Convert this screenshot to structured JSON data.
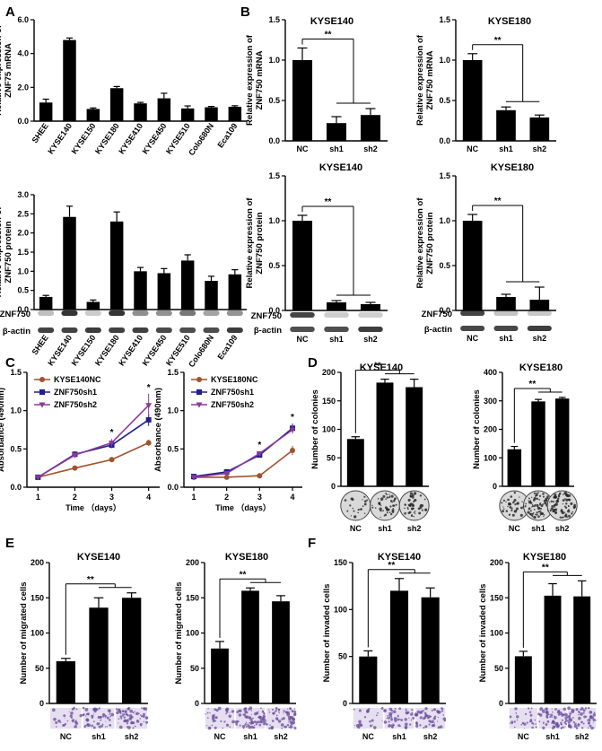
{
  "chart_data": [
    {
      "id": "A1",
      "type": "bar",
      "panel_label": "A",
      "title": "",
      "ylabel": [
        "Relative expression of",
        "ZNF75 mRNA"
      ],
      "categories": [
        "SHEE",
        "KYSE140",
        "KYSE150",
        "KYSE180",
        "KYSE410",
        "KYSE450",
        "KYSE510",
        "Colo680N",
        "Eca109"
      ],
      "values": [
        1.1,
        4.8,
        0.72,
        1.95,
        1.05,
        1.35,
        0.75,
        0.82,
        0.85
      ],
      "errors": [
        0.2,
        0.12,
        0.06,
        0.1,
        0.06,
        0.3,
        0.15,
        0.05,
        0.06
      ],
      "ylim": [
        0,
        6
      ],
      "yticks": [
        0,
        2,
        4,
        6
      ],
      "ytick_labels": [
        "0.0",
        "2.0",
        "4.0",
        "6.0"
      ],
      "xlabel_rotate": true
    },
    {
      "id": "A2",
      "type": "bar",
      "title": "",
      "ylabel": [
        "Relative expression of",
        "ZNF750 protein"
      ],
      "categories": [
        "SHEE",
        "KYSE140",
        "KYSE150",
        "KYSE180",
        "KYSE410",
        "KYSE450",
        "KYSE510",
        "Colo680N",
        "Eca109"
      ],
      "values": [
        0.33,
        2.42,
        0.2,
        2.3,
        1.0,
        0.95,
        1.28,
        0.75,
        0.92
      ],
      "errors": [
        0.04,
        0.28,
        0.05,
        0.25,
        0.1,
        0.12,
        0.15,
        0.12,
        0.12
      ],
      "ylim": [
        0,
        3
      ],
      "yticks": [
        0,
        0.5,
        1,
        1.5,
        2,
        2.5,
        3
      ],
      "ytick_labels": [
        "0.0",
        "0.5",
        "1.0",
        "1.5",
        "2.0",
        "2.5",
        "3.0"
      ],
      "blot_labels": [
        "ZNF750",
        "β-actin"
      ],
      "xlabel_rotate": true
    },
    {
      "id": "B1",
      "type": "bar",
      "panel_label": "B",
      "title": "KYSE140",
      "ylabel": [
        "Relative expression of",
        "ZNF750 mRNA"
      ],
      "categories": [
        "NC",
        "sh1",
        "sh2"
      ],
      "values": [
        1.0,
        0.22,
        0.32
      ],
      "errors": [
        0.15,
        0.08,
        0.08
      ],
      "ylim": [
        0,
        1.5
      ],
      "yticks": [
        0,
        0.5,
        1,
        1.5
      ],
      "ytick_labels": [
        "0.0",
        "0.5",
        "1.0",
        "1.5"
      ],
      "significance": "**"
    },
    {
      "id": "B2",
      "type": "bar",
      "title": "KYSE180",
      "ylabel": [
        "Relative expression of",
        "ZNF750 mRNA"
      ],
      "categories": [
        "NC",
        "sh1",
        "sh2"
      ],
      "values": [
        1.0,
        0.38,
        0.29
      ],
      "errors": [
        0.08,
        0.04,
        0.03
      ],
      "ylim": [
        0,
        1.5
      ],
      "yticks": [
        0,
        0.5,
        1,
        1.5
      ],
      "ytick_labels": [
        "0.0",
        "0.5",
        "1.0",
        "1.5"
      ],
      "significance": "**"
    },
    {
      "id": "B3",
      "type": "bar",
      "title": "KYSE140",
      "ylabel": [
        "Relative expression of",
        "ZNF750 protein"
      ],
      "categories": [
        "NC",
        "sh1",
        "sh2"
      ],
      "values": [
        1.0,
        0.09,
        0.07
      ],
      "errors": [
        0.06,
        0.02,
        0.02
      ],
      "ylim": [
        0,
        1.5
      ],
      "yticks": [
        0,
        0.5,
        1,
        1.5
      ],
      "ytick_labels": [
        "0.0",
        "0.5",
        "1.0",
        "1.5"
      ],
      "significance": "**",
      "blot_labels": [
        "ZNF750",
        "β-actin"
      ]
    },
    {
      "id": "B4",
      "type": "bar",
      "title": "KYSE180",
      "ylabel": [
        "Relative expression of",
        "ZNF750 protein"
      ],
      "categories": [
        "NC",
        "sh1",
        "sh2"
      ],
      "values": [
        1.0,
        0.15,
        0.12
      ],
      "errors": [
        0.07,
        0.03,
        0.14
      ],
      "ylim": [
        0,
        1.5
      ],
      "yticks": [
        0,
        0.5,
        1,
        1.5
      ],
      "ytick_labels": [
        "0.0",
        "0.5",
        "1.0",
        "1.5"
      ],
      "significance": "**",
      "blot_labels": [
        "ZNF750",
        "β-actin"
      ]
    },
    {
      "id": "C1",
      "type": "line",
      "panel_label": "C",
      "title": "",
      "xlabel": "Time （days）",
      "ylabel": [
        "Absorbance (490nm)"
      ],
      "x": [
        1,
        2,
        3,
        4
      ],
      "ylim": [
        0,
        1.5
      ],
      "yticks": [
        0,
        0.5,
        1,
        1.5
      ],
      "ytick_labels": [
        "0.0",
        "0.5",
        "1.0",
        "1.5"
      ],
      "series": [
        {
          "name": "KYSE140NC",
          "color": "#A0522D",
          "marker": "circle",
          "values": [
            0.13,
            0.25,
            0.36,
            0.58
          ],
          "errors": [
            0.01,
            0.02,
            0.03,
            0.04
          ]
        },
        {
          "name": "ZNF750sh1",
          "color": "#1F1F8F",
          "marker": "square",
          "values": [
            0.13,
            0.43,
            0.55,
            0.88
          ],
          "errors": [
            0.01,
            0.04,
            0.04,
            0.08
          ]
        },
        {
          "name": "ZNF750sh2",
          "color": "#8B3A9B",
          "marker": "triangle",
          "values": [
            0.13,
            0.42,
            0.58,
            1.07
          ],
          "errors": [
            0.01,
            0.03,
            0.05,
            0.15
          ]
        }
      ],
      "annotations": [
        {
          "x": 3,
          "text": "*"
        },
        {
          "x": 4,
          "text": "*"
        }
      ]
    },
    {
      "id": "C2",
      "type": "line",
      "title": "",
      "xlabel": "Time （days）",
      "ylabel": [
        "Absorbance (490nm)"
      ],
      "x": [
        1,
        2,
        3,
        4
      ],
      "ylim": [
        0,
        1.5
      ],
      "yticks": [
        0,
        0.5,
        1,
        1.5
      ],
      "ytick_labels": [
        "0.0",
        "0.5",
        "1.0",
        "1.5"
      ],
      "series": [
        {
          "name": "KYSE180NC",
          "color": "#A0522D",
          "marker": "circle",
          "values": [
            0.13,
            0.13,
            0.15,
            0.48
          ],
          "errors": [
            0.01,
            0.01,
            0.01,
            0.06
          ]
        },
        {
          "name": "ZNF750sh1",
          "color": "#1F1F8F",
          "marker": "square",
          "values": [
            0.14,
            0.2,
            0.42,
            0.77
          ],
          "errors": [
            0.01,
            0.02,
            0.03,
            0.06
          ]
        },
        {
          "name": "ZNF750sh2",
          "color": "#8B3A9B",
          "marker": "triangle",
          "values": [
            0.13,
            0.18,
            0.44,
            0.75
          ],
          "errors": [
            0.01,
            0.02,
            0.03,
            0.05
          ]
        }
      ],
      "annotations": [
        {
          "x": 3,
          "text": "*"
        },
        {
          "x": 4,
          "text": "*"
        }
      ]
    },
    {
      "id": "D1",
      "type": "bar",
      "panel_label": "D",
      "title": "KYSE140",
      "ylabel": [
        "Number of colonies"
      ],
      "categories": [
        "NC",
        "sh1",
        "sh2"
      ],
      "values": [
        83,
        182,
        174
      ],
      "errors": [
        4,
        6,
        14
      ],
      "ylim": [
        0,
        200
      ],
      "yticks": [
        0,
        50,
        100,
        150,
        200
      ],
      "ytick_labels": [
        "0",
        "50",
        "100",
        "150",
        "200"
      ],
      "significance": "**",
      "images": "colony"
    },
    {
      "id": "D2",
      "type": "bar",
      "title": "KYSE180",
      "ylabel": [
        "Number of colonies"
      ],
      "categories": [
        "NC",
        "sh1",
        "sh2"
      ],
      "values": [
        130,
        298,
        308
      ],
      "errors": [
        10,
        7,
        4
      ],
      "ylim": [
        0,
        400
      ],
      "yticks": [
        0,
        100,
        200,
        300,
        400
      ],
      "ytick_labels": [
        "0",
        "100",
        "200",
        "300",
        "400"
      ],
      "significance": "**",
      "images": "colony"
    },
    {
      "id": "E1",
      "type": "bar",
      "panel_label": "E",
      "title": "KYSE140",
      "ylabel": [
        "Number of migrated cells"
      ],
      "categories": [
        "NC",
        "sh1",
        "sh2"
      ],
      "values": [
        60,
        136,
        150
      ],
      "errors": [
        4,
        14,
        7
      ],
      "ylim": [
        0,
        200
      ],
      "yticks": [
        0,
        50,
        100,
        150,
        200
      ],
      "ytick_labels": [
        "0",
        "50",
        "100",
        "150",
        "200"
      ],
      "significance": "**",
      "images": "transwell"
    },
    {
      "id": "E2",
      "type": "bar",
      "title": "KYSE180",
      "ylabel": [
        "Number of migrated cells"
      ],
      "categories": [
        "NC",
        "sh1",
        "sh2"
      ],
      "values": [
        78,
        160,
        145
      ],
      "errors": [
        10,
        4,
        8
      ],
      "ylim": [
        0,
        200
      ],
      "yticks": [
        0,
        50,
        100,
        150,
        200
      ],
      "ytick_labels": [
        "0",
        "50",
        "100",
        "150",
        "200"
      ],
      "significance": "**",
      "images": "transwell"
    },
    {
      "id": "F1",
      "type": "bar",
      "panel_label": "F",
      "title": "KYSE140",
      "ylabel": [
        "Number of invaded cells"
      ],
      "categories": [
        "NC",
        "sh1",
        "sh2"
      ],
      "values": [
        50,
        120,
        113
      ],
      "errors": [
        6,
        13,
        10
      ],
      "ylim": [
        0,
        150
      ],
      "yticks": [
        0,
        50,
        100,
        150
      ],
      "ytick_labels": [
        "0",
        "50",
        "100",
        "150"
      ],
      "significance": "**",
      "images": "transwell"
    },
    {
      "id": "F2",
      "type": "bar",
      "title": "KYSE180",
      "ylabel": [
        "Number of invaded cells"
      ],
      "categories": [
        "NC",
        "sh1",
        "sh2"
      ],
      "values": [
        67,
        153,
        152
      ],
      "errors": [
        7,
        17,
        22
      ],
      "ylim": [
        0,
        200
      ],
      "yticks": [
        0,
        50,
        100,
        150,
        200
      ],
      "ytick_labels": [
        "0",
        "50",
        "100",
        "150",
        "200"
      ],
      "significance": "**",
      "images": "transwell"
    }
  ]
}
